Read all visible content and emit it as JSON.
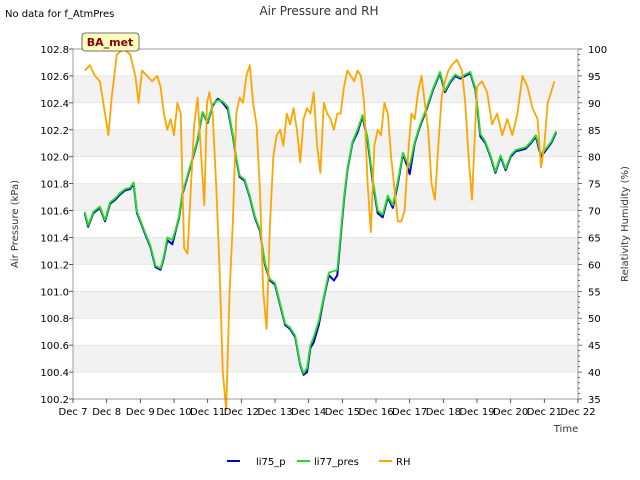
{
  "colors": {
    "li75_p": "#0000cc",
    "li77_pres": "#22dd22",
    "RH": "#ffa500",
    "band": "#f2f2f2",
    "station_bg": "#ffffc0"
  },
  "chart_data": {
    "type": "line",
    "title": "Air Pressure and RH",
    "note": "No data for f_AtmPres",
    "station_label": "BA_met",
    "xlabel": "Time",
    "ylabel_left": "Air Pressure (kPa)",
    "ylabel_right": "Relativity Humidity (%)",
    "x_ticks": [
      "Dec 7",
      "Dec 8",
      "Dec 9",
      "Dec 10",
      "Dec 11",
      "Dec 12",
      "Dec 13",
      "Dec 14",
      "Dec 15",
      "Dec 16",
      "Dec 17",
      "Dec 18",
      "Dec 19",
      "Dec 20",
      "Dec 21",
      "Dec 22"
    ],
    "y_left_ticks": [
      "100.2",
      "100.4",
      "100.6",
      "100.8",
      "101.0",
      "101.2",
      "101.4",
      "101.6",
      "101.8",
      "102.0",
      "102.2",
      "102.4",
      "102.6",
      "102.8"
    ],
    "y_right_ticks": [
      "35",
      "40",
      "45",
      "50",
      "55",
      "60",
      "65",
      "70",
      "75",
      "80",
      "85",
      "90",
      "95",
      "100"
    ],
    "xlim": [
      7,
      22
    ],
    "ylim_left": [
      100.2,
      102.8
    ],
    "ylim_right": [
      35,
      100
    ],
    "legend": [
      "li75_p",
      "li77_pres",
      "RH"
    ],
    "legend_position": "bottom-center",
    "series": [
      {
        "name": "li75_p",
        "axis": "left",
        "x": [
          7.35,
          7.45,
          7.6,
          7.8,
          7.95,
          8.1,
          8.25,
          8.4,
          8.55,
          8.7,
          8.8,
          8.9,
          9.0,
          9.15,
          9.3,
          9.45,
          9.6,
          9.7,
          9.8,
          9.95,
          10.05,
          10.15,
          10.25,
          10.4,
          10.55,
          10.7,
          10.85,
          11.0,
          11.15,
          11.3,
          11.45,
          11.6,
          11.75,
          11.85,
          11.95,
          12.1,
          12.25,
          12.4,
          12.55,
          12.7,
          12.85,
          13.0,
          13.15,
          13.3,
          13.45,
          13.6,
          13.75,
          13.85,
          13.95,
          14.05,
          14.15,
          14.3,
          14.45,
          14.6,
          14.75,
          14.85,
          14.95,
          15.05,
          15.15,
          15.3,
          15.45,
          15.6,
          15.75,
          15.9,
          16.05,
          16.2,
          16.35,
          16.5,
          16.65,
          16.8,
          16.9,
          17.0,
          17.15,
          17.3,
          17.5,
          17.7,
          17.9,
          18.05,
          18.2,
          18.35,
          18.5,
          18.65,
          18.8,
          18.95,
          19.1,
          19.25,
          19.4,
          19.55,
          19.7,
          19.85,
          20.0,
          20.15,
          20.3,
          20.45,
          20.6,
          20.75,
          20.9,
          21.05,
          21.2,
          21.35
        ],
        "y": [
          101.58,
          101.48,
          101.58,
          101.62,
          101.52,
          101.65,
          101.68,
          101.72,
          101.75,
          101.76,
          101.8,
          101.58,
          101.52,
          101.42,
          101.33,
          101.18,
          101.16,
          101.25,
          101.38,
          101.35,
          101.45,
          101.55,
          101.72,
          101.85,
          101.98,
          102.12,
          102.33,
          102.25,
          102.38,
          102.43,
          102.4,
          102.35,
          102.15,
          101.98,
          101.85,
          101.82,
          101.7,
          101.55,
          101.45,
          101.2,
          101.08,
          101.05,
          100.9,
          100.75,
          100.72,
          100.66,
          100.45,
          100.38,
          100.4,
          100.58,
          100.62,
          100.75,
          100.95,
          101.12,
          101.08,
          101.12,
          101.4,
          101.68,
          101.9,
          102.1,
          102.18,
          102.3,
          102.12,
          101.82,
          101.58,
          101.55,
          101.7,
          101.62,
          101.8,
          102.02,
          101.95,
          101.87,
          102.1,
          102.22,
          102.35,
          102.5,
          102.62,
          102.48,
          102.55,
          102.6,
          102.58,
          102.6,
          102.62,
          102.5,
          102.15,
          102.1,
          102.0,
          101.88,
          102.0,
          101.9,
          102.0,
          102.04,
          102.05,
          102.06,
          102.1,
          102.15,
          102.0,
          102.05,
          102.1,
          102.18
        ]
      },
      {
        "name": "li77_pres",
        "axis": "left",
        "x": [
          7.35,
          7.45,
          7.6,
          7.8,
          7.95,
          8.1,
          8.25,
          8.4,
          8.55,
          8.7,
          8.8,
          8.9,
          9.0,
          9.15,
          9.3,
          9.45,
          9.6,
          9.7,
          9.8,
          9.95,
          10.05,
          10.15,
          10.25,
          10.4,
          10.55,
          10.7,
          10.85,
          11.0,
          11.15,
          11.3,
          11.45,
          11.6,
          11.75,
          11.85,
          11.95,
          12.1,
          12.25,
          12.4,
          12.55,
          12.7,
          12.85,
          13.0,
          13.15,
          13.3,
          13.45,
          13.6,
          13.75,
          13.85,
          13.95,
          14.05,
          14.15,
          14.3,
          14.45,
          14.6,
          14.75,
          14.85,
          14.95,
          15.05,
          15.15,
          15.3,
          15.45,
          15.6,
          15.75,
          15.9,
          16.05,
          16.2,
          16.35,
          16.5,
          16.65,
          16.8,
          16.9,
          17.0,
          17.15,
          17.3,
          17.5,
          17.7,
          17.9,
          18.05,
          18.2,
          18.35,
          18.5,
          18.65,
          18.8,
          18.95,
          19.1,
          19.25,
          19.4,
          19.55,
          19.7,
          19.85,
          20.0,
          20.15,
          20.3,
          20.45,
          20.6,
          20.75,
          20.9,
          21.05,
          21.2,
          21.35
        ],
        "y": [
          101.59,
          101.49,
          101.59,
          101.63,
          101.53,
          101.66,
          101.69,
          101.73,
          101.76,
          101.77,
          101.81,
          101.59,
          101.53,
          101.43,
          101.34,
          101.19,
          101.17,
          101.26,
          101.4,
          101.38,
          101.46,
          101.56,
          101.73,
          101.86,
          101.99,
          102.13,
          102.33,
          102.26,
          102.39,
          102.42,
          102.41,
          102.37,
          102.16,
          101.99,
          101.86,
          101.83,
          101.71,
          101.56,
          101.46,
          101.21,
          101.09,
          101.06,
          100.91,
          100.76,
          100.73,
          100.67,
          100.46,
          100.39,
          100.43,
          100.6,
          100.66,
          100.78,
          100.96,
          101.14,
          101.15,
          101.16,
          101.42,
          101.7,
          101.91,
          102.11,
          102.2,
          102.31,
          102.14,
          101.84,
          101.6,
          101.57,
          101.71,
          101.64,
          101.82,
          102.03,
          101.97,
          101.93,
          102.11,
          102.23,
          102.36,
          102.51,
          102.63,
          102.49,
          102.56,
          102.61,
          102.59,
          102.61,
          102.63,
          102.51,
          102.17,
          102.11,
          102.01,
          101.89,
          102.01,
          101.91,
          102.01,
          102.05,
          102.06,
          102.07,
          102.11,
          102.16,
          102.02,
          102.06,
          102.11,
          102.19
        ]
      },
      {
        "name": "RH",
        "axis": "right",
        "x": [
          7.35,
          7.5,
          7.65,
          7.8,
          7.95,
          8.05,
          8.15,
          8.3,
          8.5,
          8.7,
          8.85,
          8.95,
          9.05,
          9.2,
          9.35,
          9.5,
          9.6,
          9.7,
          9.8,
          9.9,
          10.0,
          10.1,
          10.2,
          10.3,
          10.4,
          10.5,
          10.6,
          10.7,
          10.8,
          10.9,
          10.98,
          11.05,
          11.15,
          11.25,
          11.35,
          11.45,
          11.55,
          11.65,
          11.75,
          11.85,
          11.95,
          12.05,
          12.15,
          12.25,
          12.35,
          12.45,
          12.55,
          12.65,
          12.75,
          12.85,
          12.95,
          13.05,
          13.15,
          13.25,
          13.35,
          13.45,
          13.55,
          13.65,
          13.75,
          13.85,
          13.95,
          14.05,
          14.15,
          14.25,
          14.35,
          14.45,
          14.55,
          14.65,
          14.75,
          14.85,
          14.95,
          15.05,
          15.15,
          15.25,
          15.35,
          15.45,
          15.55,
          15.65,
          15.75,
          15.85,
          15.95,
          16.05,
          16.15,
          16.25,
          16.35,
          16.45,
          16.55,
          16.65,
          16.75,
          16.85,
          16.95,
          17.05,
          17.15,
          17.25,
          17.35,
          17.45,
          17.55,
          17.65,
          17.75,
          17.85,
          17.95,
          18.05,
          18.15,
          18.25,
          18.4,
          18.55,
          18.65,
          18.75,
          18.85,
          19.0,
          19.15,
          19.3,
          19.45,
          19.6,
          19.75,
          19.9,
          20.05,
          20.2,
          20.35,
          20.5,
          20.65,
          20.8,
          20.9,
          21.0,
          21.1,
          21.2,
          21.3
        ],
        "y": [
          96,
          97,
          95,
          94,
          88,
          84,
          91,
          99,
          100,
          99,
          95,
          90,
          96,
          95,
          94,
          95,
          93,
          88,
          85,
          87,
          84,
          90,
          88,
          63,
          62,
          74,
          86,
          91,
          81,
          71,
          90,
          92,
          88,
          75,
          60,
          40,
          33,
          55,
          68,
          88,
          91,
          90,
          95,
          97,
          90,
          86,
          74,
          55,
          48,
          67,
          80,
          84,
          85,
          82,
          88,
          86,
          89,
          85,
          79,
          87,
          89,
          88,
          92,
          82,
          77,
          90,
          88,
          87,
          85,
          88,
          88,
          93,
          96,
          95,
          94,
          96,
          95,
          90,
          75,
          66,
          82,
          85,
          84,
          90,
          88,
          80,
          74,
          68,
          68,
          70,
          80,
          88,
          87,
          92,
          95,
          90,
          85,
          75,
          72,
          82,
          91,
          94,
          96,
          97,
          98,
          96,
          90,
          80,
          72,
          93,
          94,
          92,
          86,
          88,
          84,
          87,
          84,
          88,
          95,
          93,
          89,
          87,
          78,
          82,
          90,
          92,
          94
        ]
      }
    ]
  }
}
